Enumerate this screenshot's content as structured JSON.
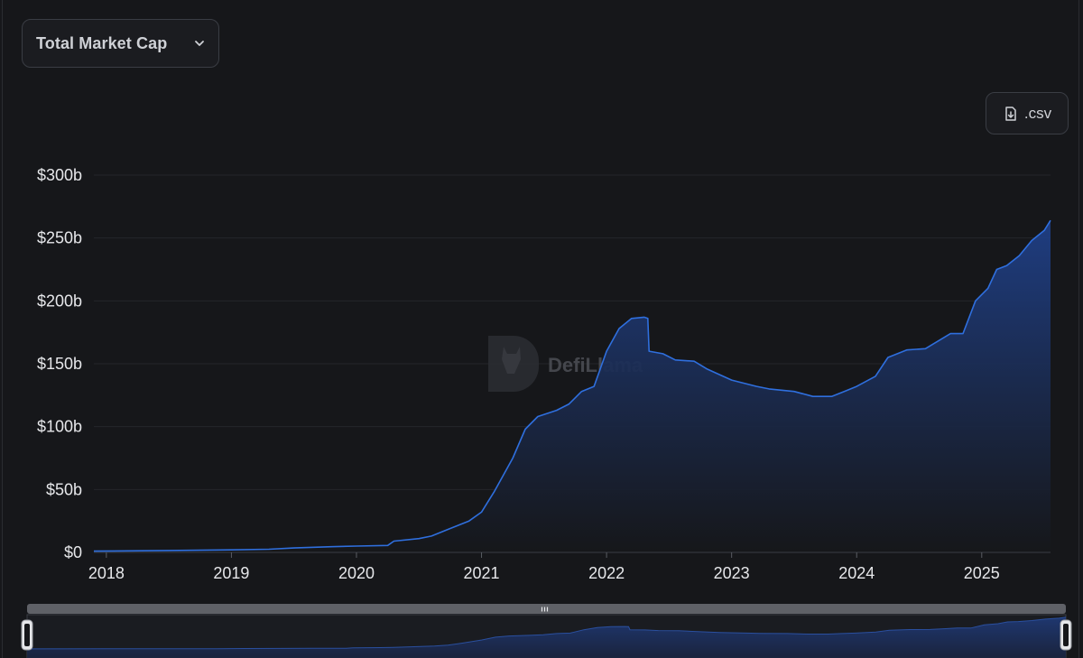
{
  "header": {
    "metric_select_label": "Total Market Cap",
    "csv_button_label": ".csv"
  },
  "watermark": {
    "text": "DefiLlama"
  },
  "icons": {
    "metric_select": "chevron-down-icon",
    "csv_button": "file-download-icon",
    "watermark_logo": "llama-logo-icon",
    "brush_handle": "grip-icon"
  },
  "colors": {
    "background": "#16171a",
    "line": "#2f6fde",
    "area_top": "#1f3f86",
    "area_bottom": "#16171a",
    "grid": "#24262b"
  },
  "chart_data": {
    "type": "area",
    "title": "",
    "xlabel": "",
    "ylabel": "",
    "ylim": [
      0,
      300
    ],
    "y_unit": "$b",
    "y_ticks": [
      0,
      50,
      100,
      150,
      200,
      250,
      300
    ],
    "y_tick_labels": [
      "$0",
      "$50b",
      "$100b",
      "$150b",
      "$200b",
      "$250b",
      "$300b"
    ],
    "x_tick_labels": [
      "2018",
      "2019",
      "2020",
      "2021",
      "2022",
      "2023",
      "2024",
      "2025"
    ],
    "xlim": [
      2017.9,
      2025.55
    ],
    "grid": true,
    "legend": "none",
    "series": [
      {
        "values": [
          [
            2017.9,
            1
          ],
          [
            2018.5,
            1.5
          ],
          [
            2019.0,
            2
          ],
          [
            2019.3,
            2.5
          ],
          [
            2019.5,
            3.5
          ],
          [
            2019.8,
            4.5
          ],
          [
            2020.0,
            5
          ],
          [
            2020.25,
            5.5
          ],
          [
            2020.3,
            9
          ],
          [
            2020.5,
            11
          ],
          [
            2020.6,
            13
          ],
          [
            2020.75,
            19
          ],
          [
            2020.9,
            25
          ],
          [
            2021.0,
            32
          ],
          [
            2021.1,
            48
          ],
          [
            2021.25,
            75
          ],
          [
            2021.35,
            98
          ],
          [
            2021.45,
            108
          ],
          [
            2021.6,
            113
          ],
          [
            2021.7,
            118
          ],
          [
            2021.8,
            128
          ],
          [
            2021.9,
            132
          ],
          [
            2022.0,
            160
          ],
          [
            2022.1,
            178
          ],
          [
            2022.2,
            186
          ],
          [
            2022.3,
            187
          ],
          [
            2022.33,
            186
          ],
          [
            2022.34,
            160
          ],
          [
            2022.45,
            158
          ],
          [
            2022.55,
            153
          ],
          [
            2022.7,
            152
          ],
          [
            2022.8,
            146
          ],
          [
            2023.0,
            137
          ],
          [
            2023.2,
            132
          ],
          [
            2023.3,
            130
          ],
          [
            2023.5,
            128
          ],
          [
            2023.65,
            124
          ],
          [
            2023.8,
            124
          ],
          [
            2023.9,
            128
          ],
          [
            2024.0,
            132
          ],
          [
            2024.15,
            140
          ],
          [
            2024.25,
            155
          ],
          [
            2024.4,
            161
          ],
          [
            2024.55,
            162
          ],
          [
            2024.65,
            168
          ],
          [
            2024.75,
            174
          ],
          [
            2024.85,
            174
          ],
          [
            2024.95,
            200
          ],
          [
            2025.05,
            210
          ],
          [
            2025.12,
            225
          ],
          [
            2025.2,
            228
          ],
          [
            2025.3,
            236
          ],
          [
            2025.4,
            248
          ],
          [
            2025.5,
            256
          ],
          [
            2025.55,
            264
          ]
        ]
      }
    ]
  }
}
